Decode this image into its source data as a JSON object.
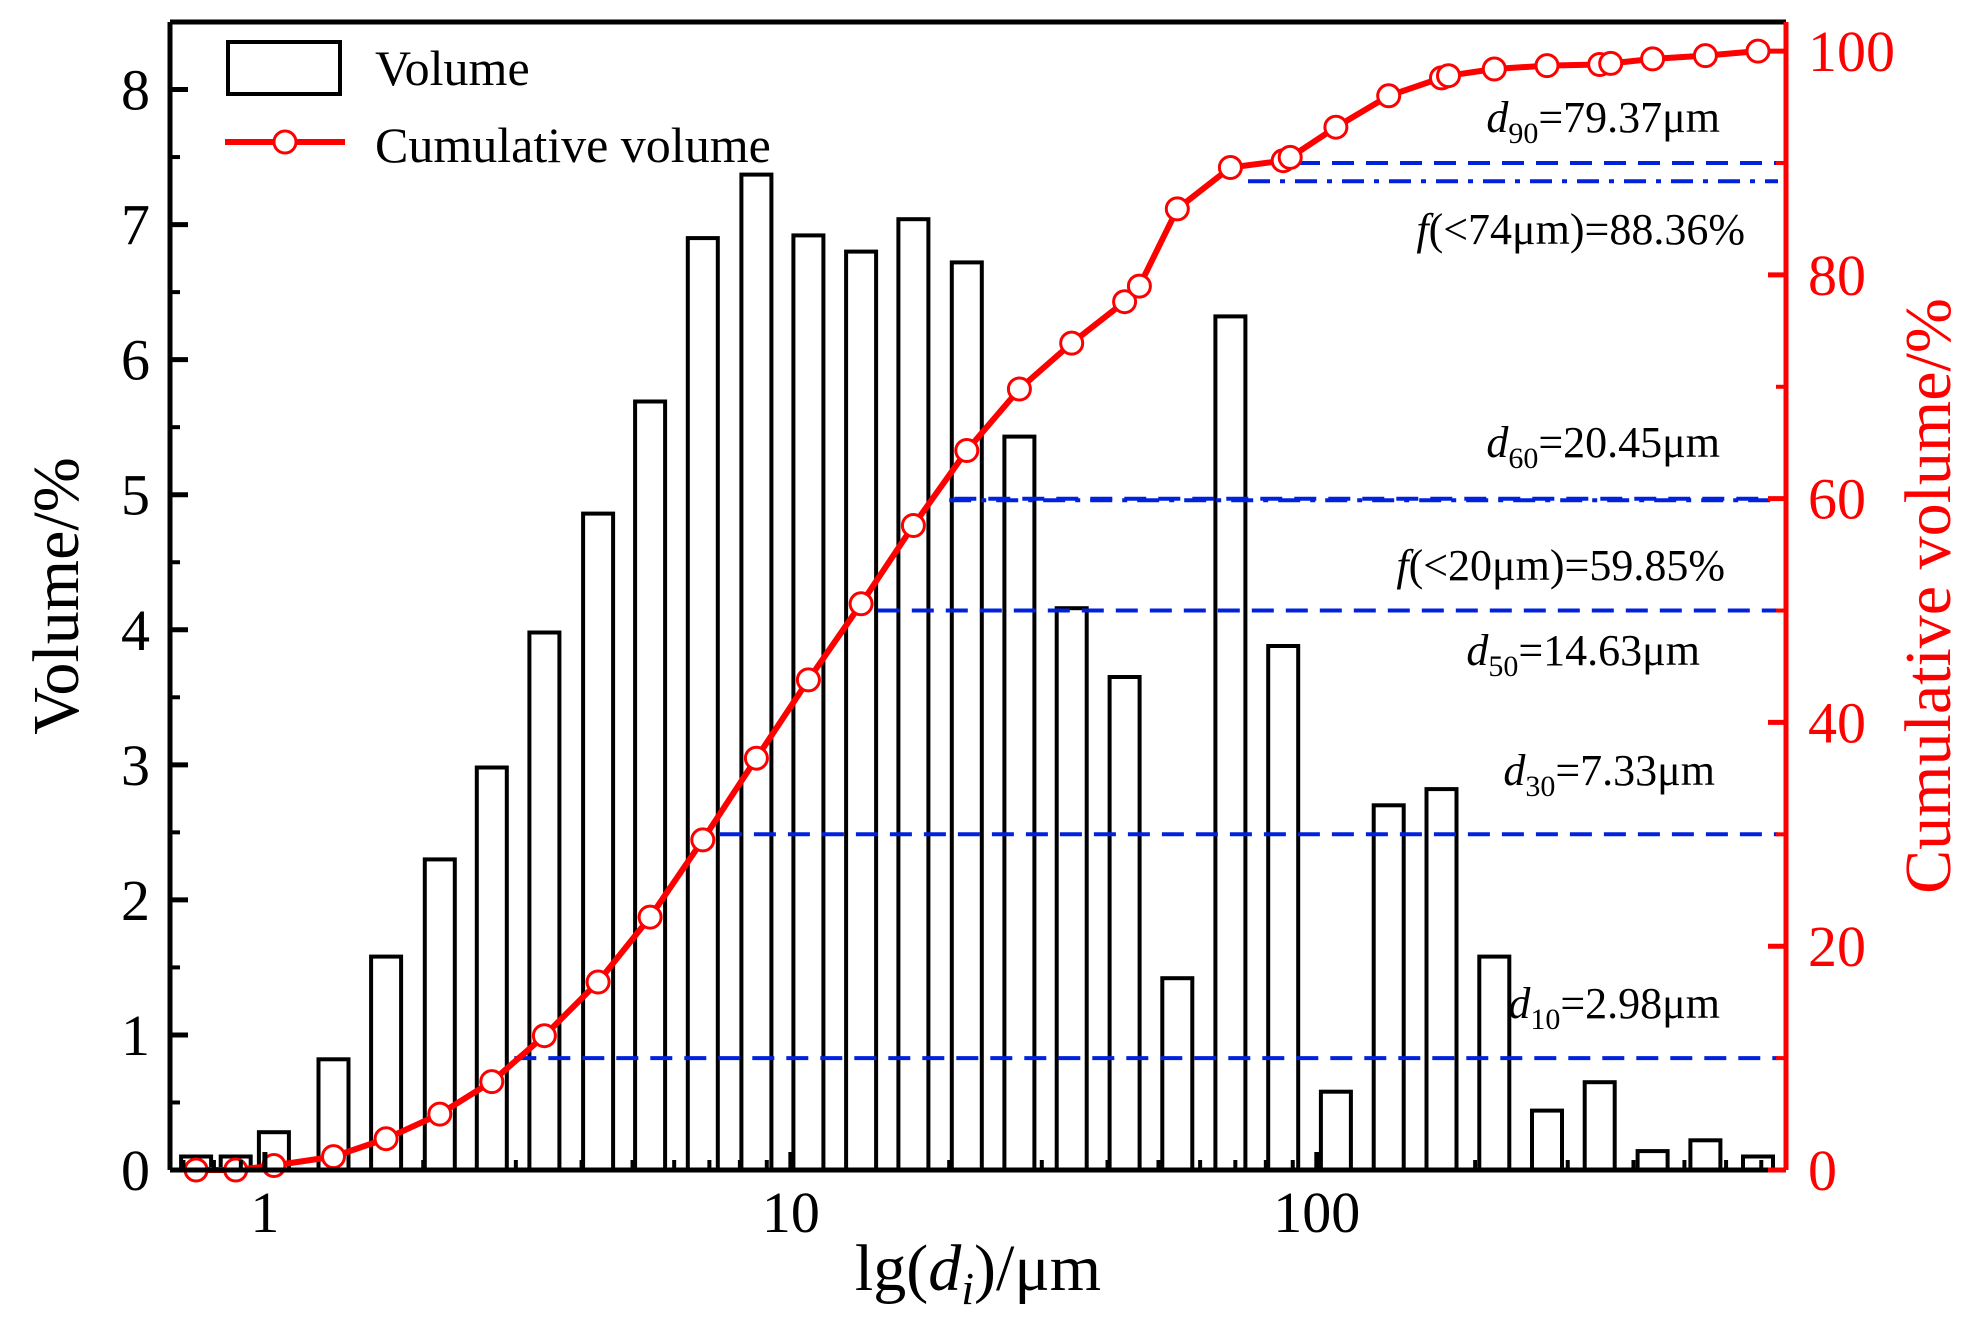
{
  "chart_data": {
    "type": "bar+line",
    "title": "",
    "xlabel": {
      "prefix": "lg(",
      "var": "d",
      "sub": "i",
      "suffix": ")/μm"
    },
    "ylabel_left": "Volume/%",
    "ylabel_right": "Cumulative volume/%",
    "x_scale": "log",
    "xlim": [
      0.66,
      780
    ],
    "ylim_left": [
      0,
      8.5
    ],
    "ylim_right": [
      0,
      102.6
    ],
    "x_ticks": [
      {
        "value": 1,
        "label": "1"
      },
      {
        "value": 10,
        "label": "10"
      },
      {
        "value": 100,
        "label": "100"
      }
    ],
    "y_ticks_left": [
      {
        "value": 0,
        "label": "0"
      },
      {
        "value": 1,
        "label": "1"
      },
      {
        "value": 2,
        "label": "2"
      },
      {
        "value": 3,
        "label": "3"
      },
      {
        "value": 4,
        "label": "4"
      },
      {
        "value": 5,
        "label": "5"
      },
      {
        "value": 6,
        "label": "6"
      },
      {
        "value": 7,
        "label": "7"
      },
      {
        "value": 8,
        "label": "8"
      }
    ],
    "y_ticks_right": [
      {
        "value": 0,
        "label": "0"
      },
      {
        "value": 20,
        "label": "20"
      },
      {
        "value": 40,
        "label": "40"
      },
      {
        "value": 60,
        "label": "60"
      },
      {
        "value": 80,
        "label": "80"
      },
      {
        "value": 100,
        "label": "100"
      }
    ],
    "legend": [
      {
        "label": "Volume",
        "style": "bar"
      },
      {
        "label": "Cumulative volume",
        "style": "line-marker"
      }
    ],
    "colors": {
      "bar_edge": "#000000",
      "cumulative": "#ff0000",
      "reference": "#0022dd",
      "left_axis": "#000000",
      "right_axis": "#ff0000"
    },
    "series": [
      {
        "name": "Volume",
        "type": "bar",
        "x": [
          0.74,
          0.88,
          1.04,
          1.35,
          1.7,
          2.15,
          2.7,
          3.4,
          4.3,
          5.4,
          6.8,
          8.6,
          10.8,
          13.6,
          17.1,
          21.6,
          27.2,
          34.2,
          43.1,
          54.3,
          68.5,
          86.3,
          108.7,
          137,
          172.6,
          217.5,
          274,
          345,
          435,
          548,
          690
        ],
        "values": [
          0.1,
          0.1,
          0.28,
          0.82,
          1.58,
          2.3,
          2.98,
          3.98,
          4.86,
          5.69,
          6.9,
          7.37,
          6.92,
          6.8,
          7.04,
          6.72,
          5.43,
          4.16,
          3.65,
          1.42,
          6.32,
          3.88,
          0.58,
          2.7,
          2.82,
          1.58,
          0.44,
          0.65,
          0.14,
          0.22,
          0.1
        ]
      },
      {
        "name": "Cumulative volume",
        "type": "line",
        "x": [
          0.74,
          0.88,
          1.04,
          1.35,
          1.7,
          2.15,
          2.7,
          3.4,
          4.3,
          5.4,
          6.8,
          8.6,
          10.8,
          13.6,
          17.1,
          21.6,
          27.2,
          34.2,
          43.1,
          46,
          54.3,
          68.5,
          86.3,
          89,
          108.7,
          137,
          172.6,
          178,
          217.5,
          274,
          345,
          362,
          435,
          548,
          690
        ],
        "values": [
          0,
          0,
          0.4,
          1.2,
          2.8,
          5,
          7.9,
          12,
          16.8,
          22.6,
          29.5,
          36.8,
          43.8,
          50.6,
          57.6,
          64.3,
          69.8,
          73.9,
          77.6,
          79,
          85.9,
          89.6,
          90.2,
          90.5,
          93.2,
          96,
          97.6,
          97.8,
          98.4,
          98.7,
          98.8,
          98.9,
          99.3,
          99.6,
          100
        ]
      }
    ],
    "reference_lines": [
      {
        "name": "d10",
        "cum": 10,
        "x_start": 2.98,
        "style": "dash"
      },
      {
        "name": "d30",
        "cum": 30,
        "x_start": 7.33,
        "style": "dash"
      },
      {
        "name": "d50",
        "cum": 50,
        "x_start": 14.63,
        "style": "dash"
      },
      {
        "name": "d60",
        "cum": 60,
        "x_start": 20.45,
        "style": "dash"
      },
      {
        "name": "f20",
        "cum": 59.85,
        "x_start": 20,
        "style": "dashdot"
      },
      {
        "name": "d90",
        "cum": 90,
        "x_start": 79.37,
        "style": "dash"
      },
      {
        "name": "f74",
        "cum": 88.36,
        "x_start": 74,
        "style": "dashdot"
      }
    ],
    "annotations": [
      {
        "type": "d",
        "sub": "90",
        "text": "=79.37μm"
      },
      {
        "type": "f",
        "text": "(<74μm)=88.36%"
      },
      {
        "type": "d",
        "sub": "60",
        "text": "=20.45μm"
      },
      {
        "type": "f",
        "text": "(<20μm)=59.85%"
      },
      {
        "type": "d",
        "sub": "50",
        "text": "=14.63μm"
      },
      {
        "type": "d",
        "sub": "30",
        "text": "=7.33μm"
      },
      {
        "type": "d",
        "sub": "10",
        "text": "=2.98μm"
      }
    ]
  }
}
